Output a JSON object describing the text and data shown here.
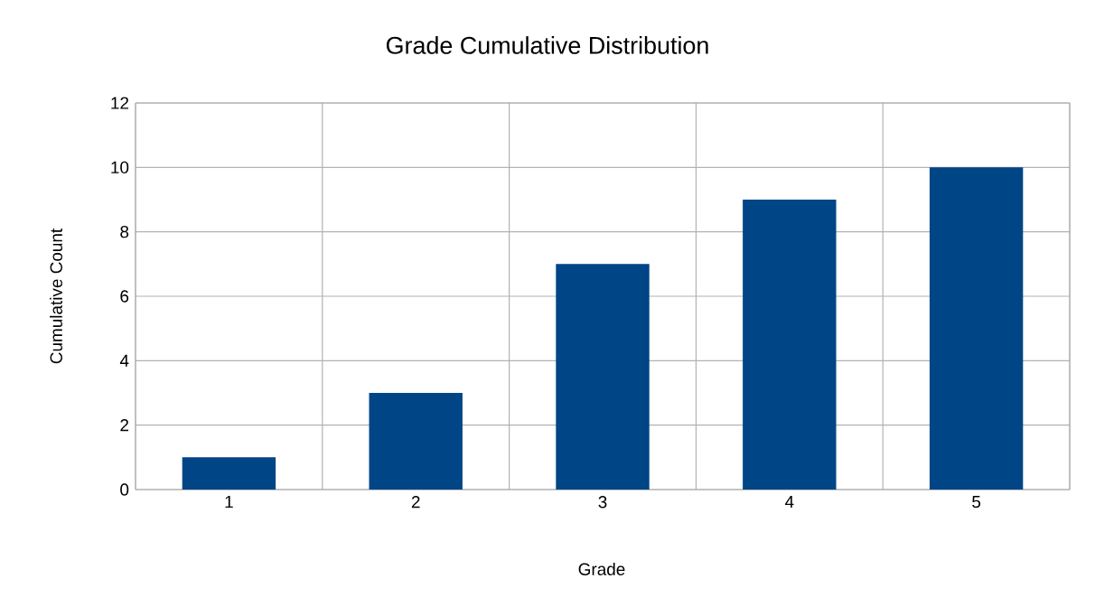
{
  "chart_data": {
    "type": "bar",
    "title": "Grade Cumulative Distribution",
    "xlabel": "Grade",
    "ylabel": "Cumulative Count",
    "categories": [
      "1",
      "2",
      "3",
      "4",
      "5"
    ],
    "values": [
      1,
      3,
      7,
      9,
      10
    ],
    "color": "#004586",
    "ylim": [
      0,
      12
    ],
    "yticks": [
      0,
      2,
      4,
      6,
      8,
      10,
      12
    ],
    "grid": true
  }
}
